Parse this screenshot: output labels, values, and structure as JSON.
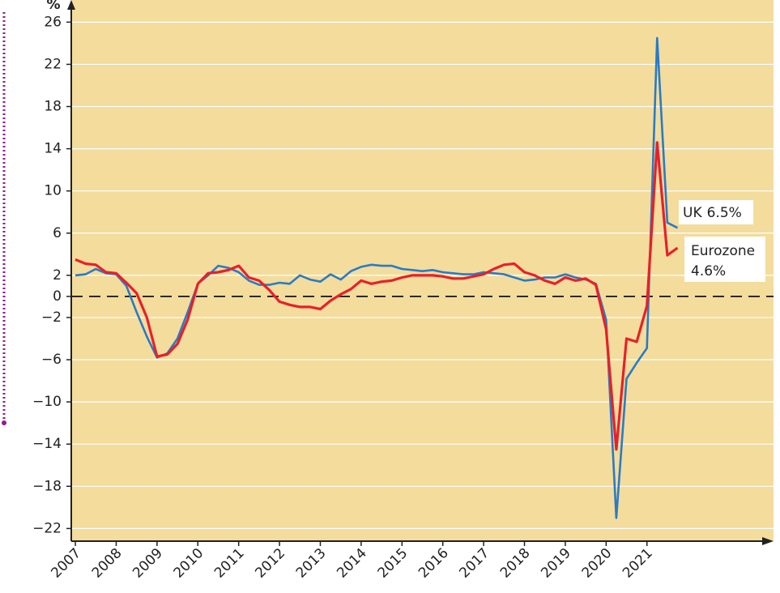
{
  "chart_data": {
    "type": "line",
    "y_label": "%",
    "x": [
      2007,
      2007.25,
      2007.5,
      2007.75,
      2008,
      2008.25,
      2008.5,
      2008.75,
      2009,
      2009.25,
      2009.5,
      2009.75,
      2010,
      2010.25,
      2010.5,
      2010.75,
      2011,
      2011.25,
      2011.5,
      2011.75,
      2012,
      2012.25,
      2012.5,
      2012.75,
      2013,
      2013.25,
      2013.5,
      2013.75,
      2014,
      2014.25,
      2014.5,
      2014.75,
      2015,
      2015.25,
      2015.5,
      2015.75,
      2016,
      2016.25,
      2016.5,
      2016.75,
      2017,
      2017.25,
      2017.5,
      2017.75,
      2018,
      2018.25,
      2018.5,
      2018.75,
      2019,
      2019.25,
      2019.5,
      2019.75,
      2020,
      2020.25,
      2020.5,
      2020.75,
      2021,
      2021.25,
      2021.5,
      2021.75
    ],
    "series": [
      {
        "name": "UK",
        "end_label": "6.5%",
        "color": "#2a7bc4",
        "values": [
          2.0,
          2.1,
          2.6,
          2.2,
          2.1,
          1.0,
          -1.5,
          -3.8,
          -5.8,
          -5.4,
          -4.0,
          -1.5,
          1.2,
          2.0,
          2.9,
          2.7,
          2.3,
          1.5,
          1.1,
          1.1,
          1.3,
          1.2,
          2.0,
          1.6,
          1.4,
          2.1,
          1.6,
          2.4,
          2.8,
          3.0,
          2.9,
          2.9,
          2.6,
          2.5,
          2.4,
          2.5,
          2.3,
          2.2,
          2.1,
          2.1,
          2.3,
          2.2,
          2.1,
          1.8,
          1.5,
          1.6,
          1.8,
          1.8,
          2.1,
          1.8,
          1.6,
          1.2,
          -2.2,
          -21.0,
          -7.8,
          -6.3,
          -4.9,
          24.5,
          7.0,
          6.5
        ]
      },
      {
        "name": "Eurozone",
        "end_label": "4.6%",
        "color": "#e8202a",
        "values": [
          3.5,
          3.1,
          3.0,
          2.3,
          2.2,
          1.3,
          0.3,
          -2.0,
          -5.7,
          -5.5,
          -4.5,
          -2.2,
          1.2,
          2.2,
          2.3,
          2.5,
          2.9,
          1.8,
          1.5,
          0.6,
          -0.5,
          -0.8,
          -1.0,
          -1.0,
          -1.2,
          -0.4,
          0.2,
          0.7,
          1.5,
          1.2,
          1.4,
          1.5,
          1.8,
          2.0,
          2.0,
          2.0,
          1.9,
          1.7,
          1.7,
          1.9,
          2.1,
          2.6,
          3.0,
          3.1,
          2.3,
          2.0,
          1.5,
          1.2,
          1.8,
          1.5,
          1.7,
          1.1,
          -3.1,
          -14.5,
          -4.0,
          -4.3,
          -0.9,
          14.6,
          3.9,
          4.6
        ]
      }
    ],
    "xlim": [
      2006.9,
      2024.1
    ],
    "xticks": [
      2007,
      2008,
      2009,
      2010,
      2011,
      2012,
      2013,
      2014,
      2015,
      2016,
      2017,
      2018,
      2019,
      2020,
      2021
    ],
    "ylim": [
      -23.2,
      28.1
    ],
    "yticks": [
      26,
      22,
      18,
      14,
      10,
      6,
      2,
      0,
      {
        "value": -2,
        "label": "−2"
      },
      {
        "value": -6,
        "label": "−6"
      },
      {
        "value": -10,
        "label": "−10"
      },
      {
        "value": -14,
        "label": "−14"
      },
      {
        "value": -18,
        "label": "−18"
      },
      {
        "value": -22,
        "label": "−22"
      }
    ],
    "grid": true,
    "background": "#f3dc9c"
  }
}
